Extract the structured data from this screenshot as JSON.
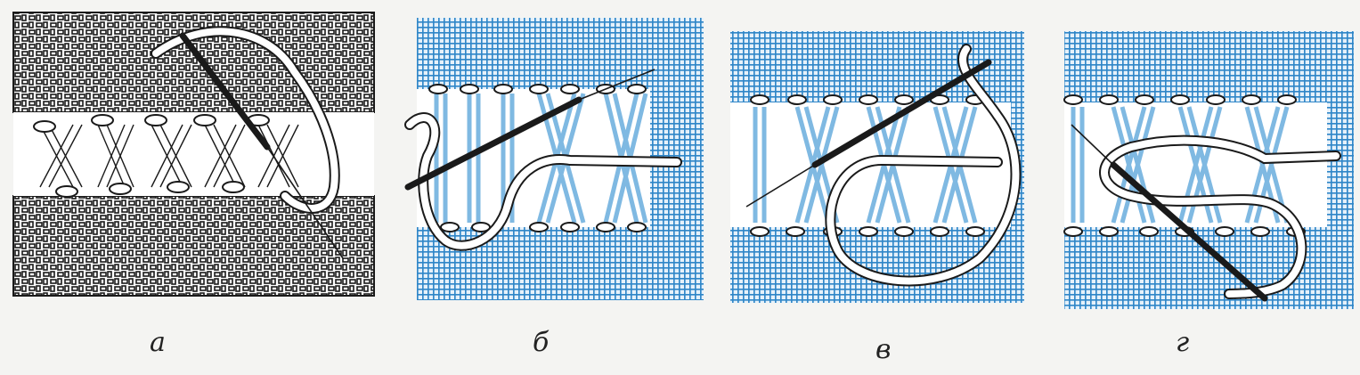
{
  "figure": {
    "panels": [
      {
        "id": "a",
        "label": "а",
        "style": "outline"
      },
      {
        "id": "b",
        "label": "б",
        "style": "blue"
      },
      {
        "id": "v",
        "label": "в",
        "style": "blue"
      },
      {
        "id": "g",
        "label": "г",
        "style": "blue"
      }
    ],
    "colors": {
      "paper": "#f4f4f2",
      "grid_blue": "#2f86c8",
      "thread_blue": "#7fb9e2",
      "ink": "#1a1a1a",
      "white": "#ffffff"
    }
  }
}
